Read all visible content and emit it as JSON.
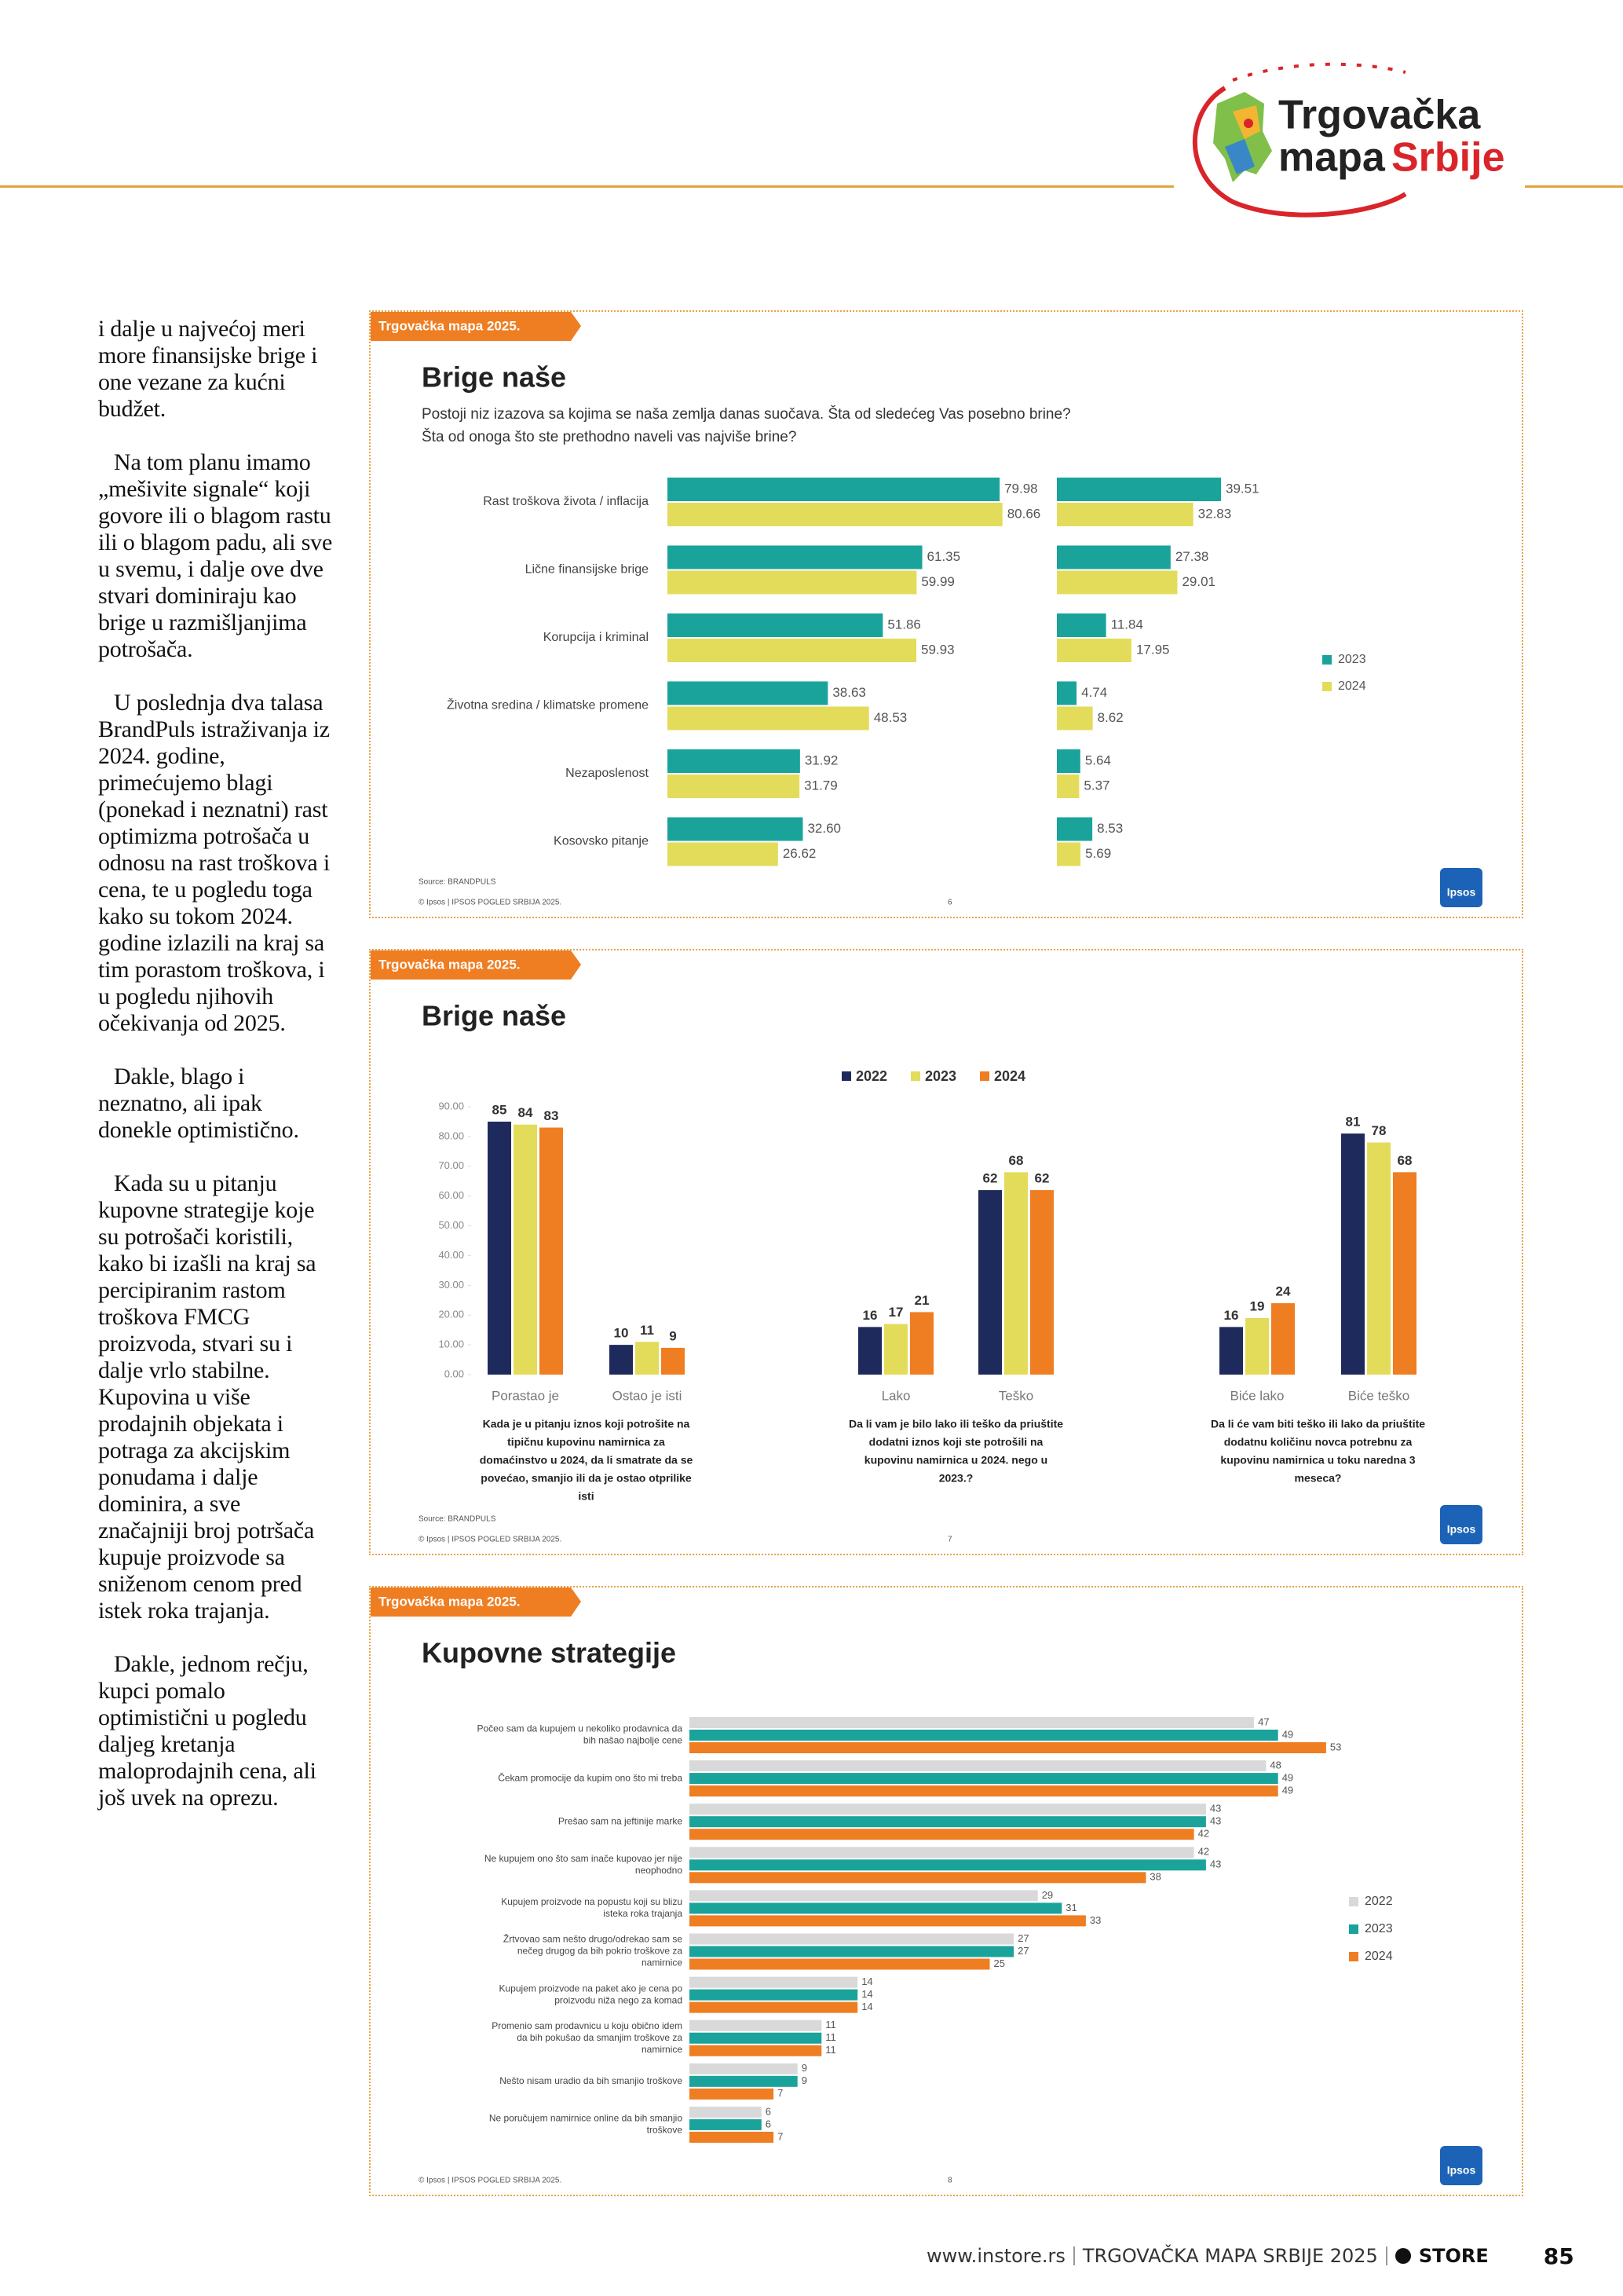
{
  "header": {
    "logo": [
      "Trgovačka",
      "mapa",
      "Srbije"
    ]
  },
  "article": {
    "paragraphs": [
      "i dalje u najvećoj meri more finansijske brige i one vezane za kućni budžet.",
      "Na tom planu imamo „mešivite signale“ koji govore ili o blagom rastu ili o blagom padu, ali sve u svemu, i dalje ove dve stvari dominiraju kao brige u razmišljanjima potrošača.",
      "U poslednja dva talasa BrandPuls istraživanja iz 2024. godine, primećujemo blagi (ponekad i neznatni) rast optimizma potrošača u odnosu na rast troškova i cena, te u pogledu toga kako su tokom 2024. godine izlazili na kraj sa tim porastom troškova, i u pogledu njihovih očekivanja od 2025.",
      "Dakle, blago i neznatno, ali ipak donekle optimistično.",
      "Kada su u pitanju kupovne strategije koje su potrošači koristili, kako bi izašli na kraj sa percipiranim rastom troškova FMCG proizvoda, stvari su i dalje vrlo stabilne. Kupovina u više prodajnih objekata i potraga za akcijskim ponudama i dalje dominira, a sve značajniji broj potršača kupuje proizvode sa sniženom cenom pred istek roka trajanja.",
      "Dakle, jednom rečju, kupci pomalo optimistični u pogledu daljeg kretanja maloprodajnih cena, ali još uvek na oprezu."
    ]
  },
  "chart_data": [
    {
      "type": "hbar-panels",
      "tag": "Trgovačka mapa 2025.",
      "title": "Brige naše",
      "subtitle": [
        "Postoji niz izazova sa kojima se naša zemlja danas suočava.  Šta od sledećeg Vas posebno brine?",
        "Šta od onoga što ste prethodno naveli vas najviše brine?"
      ],
      "categories": [
        "Rast troškova života / inflacija",
        "Lične finansijske brige",
        "Korupcija i kriminal",
        "Životna sredina / klimatske promene",
        "Nezaposlenost",
        "Kosovsko pitanje"
      ],
      "xlim": [
        0,
        100
      ],
      "panels": [
        {
          "series": [
            {
              "name": "2023",
              "color": "#1aa39a",
              "values": [
                79.98,
                61.35,
                51.86,
                38.63,
                31.92,
                32.6
              ],
              "value_labels": [
                "79.98",
                "61.35",
                "51.86",
                "38.63",
                "31.92",
                "32.60"
              ]
            },
            {
              "name": "2024",
              "color": "#e3dc5a",
              "values": [
                80.66,
                59.99,
                59.93,
                48.53,
                31.79,
                26.62
              ],
              "value_labels": [
                "80.66",
                "59.99",
                "59.93",
                "48.53",
                "31.79",
                "26.62"
              ]
            }
          ]
        },
        {
          "series": [
            {
              "name": "2023",
              "color": "#1aa39a",
              "values": [
                39.51,
                27.38,
                11.84,
                4.74,
                5.64,
                8.53
              ],
              "value_labels": [
                "39.51",
                "27.38",
                "11.84",
                "4.74",
                "5.64",
                "8.53"
              ]
            },
            {
              "name": "2024",
              "color": "#e3dc5a",
              "values": [
                32.83,
                29.01,
                17.95,
                8.62,
                5.37,
                5.69
              ],
              "value_labels": [
                "32.83",
                "29.01",
                "17.95",
                "8.62",
                "5.37",
                "5.69"
              ]
            }
          ]
        }
      ],
      "legend_position": "right",
      "source": "Source: BRANDPULS",
      "copyright": "© Ipsos | IPSOS POGLED SRBIJA 2025.",
      "page": "6",
      "logo": "Ipsos"
    },
    {
      "type": "bar",
      "tag": "Trgovačka mapa 2025.",
      "title": "Brige naše",
      "categories": [
        "Porastao je",
        "Ostao je isti",
        "Lako",
        "Teško",
        "Biće lako",
        "Biće teško"
      ],
      "series": [
        {
          "name": "2022",
          "color": "#1f2a5c",
          "values": [
            85,
            10,
            16,
            62,
            16,
            81
          ]
        },
        {
          "name": "2023",
          "color": "#e3dc5a",
          "values": [
            84,
            11,
            17,
            68,
            19,
            78
          ]
        },
        {
          "name": "2024",
          "color": "#ef7d22",
          "values": [
            83,
            9,
            21,
            62,
            24,
            68
          ]
        }
      ],
      "ylim": [
        0,
        90
      ],
      "yticks": [
        {
          "value": 0,
          "label": "0.00"
        },
        {
          "value": 10,
          "label": "10.00"
        },
        {
          "value": 20,
          "label": "20.00"
        },
        {
          "value": 30,
          "label": "30.00"
        },
        {
          "value": 40,
          "label": "40.00"
        },
        {
          "value": 50,
          "label": "50.00"
        },
        {
          "value": 60,
          "label": "60.00"
        },
        {
          "value": 70,
          "label": "70.00"
        },
        {
          "value": 80,
          "label": "80.00"
        },
        {
          "value": 90,
          "label": "90.00"
        }
      ],
      "group_notes": [
        [
          "Kada je u pitanju iznos koji potrošite na",
          "tipičnu kupovinu namirnica za",
          "domaćinstvo u 2024, da li smatrate da se",
          "povećao, smanjio ili da je ostao otprilike",
          "isti"
        ],
        [
          "Da li vam je bilo lako ili teško da priuštite",
          "dodatni iznos koji ste potrošili na",
          "kupovinu namirnica u 2024. nego u",
          "2023.?"
        ],
        [
          "Da li će vam biti teško ili lako da priuštite",
          "dodatnu količinu novca potrebnu za",
          "kupovinu namirnica u toku naredna 3",
          "meseca?"
        ]
      ],
      "legend_position": "top",
      "source": "Source: BRANDPULS",
      "copyright": "© Ipsos | IPSOS POGLED SRBIJA 2025.",
      "page": "7",
      "logo": "Ipsos"
    },
    {
      "type": "hbar",
      "tag": "Trgovačka mapa 2025.",
      "title": "Kupovne strategije",
      "categories": [
        [
          "Počeo sam da kupujem u nekoliko prodavnica da",
          "bih našao najbolje cene"
        ],
        [
          "Čekam promocije da kupim ono što mi treba"
        ],
        [
          "Prešao sam na jeftinije marke"
        ],
        [
          "Ne kupujem ono što sam inače kupovao jer nije",
          "neophodno"
        ],
        [
          "Kupujem proizvode na popustu koji su blizu",
          "isteka roka trajanja"
        ],
        [
          "Žrtvovao sam nešto drugo/odrekao sam se",
          "nečeg drugog da bih pokrio troškove za",
          "namirnice"
        ],
        [
          "Kupujem proizvode na paket ako je cena po",
          "proizvodu niža nego za komad"
        ],
        [
          "Promenio sam prodavnicu u koju obično idem",
          "da bih pokušao da smanjim troškove za",
          "namirnice"
        ],
        [
          "Nešto nisam uradio da bih smanjio troškove"
        ],
        [
          "Ne poručujem namirnice online da bih smanjio",
          "troškove"
        ]
      ],
      "series": [
        {
          "name": "2022",
          "color": "#d9d9d9",
          "values": [
            47,
            48,
            43,
            42,
            29,
            27,
            14,
            11,
            9,
            6
          ]
        },
        {
          "name": "2023",
          "color": "#1aa39a",
          "values": [
            49,
            49,
            43,
            43,
            31,
            27,
            14,
            11,
            9,
            6
          ]
        },
        {
          "name": "2024",
          "color": "#ef7d22",
          "values": [
            53,
            49,
            42,
            38,
            33,
            25,
            14,
            11,
            7,
            7
          ]
        }
      ],
      "xlim": [
        0,
        60
      ],
      "legend_position": "right",
      "copyright": "© Ipsos | IPSOS POGLED SRBIJA 2025.",
      "page": "8",
      "logo": "Ipsos"
    }
  ],
  "footer": {
    "site": "www.instore.rs",
    "publication": "TRGOVAČKA MAPA SRBIJE 2025",
    "brand": "STORE",
    "page": "85"
  }
}
